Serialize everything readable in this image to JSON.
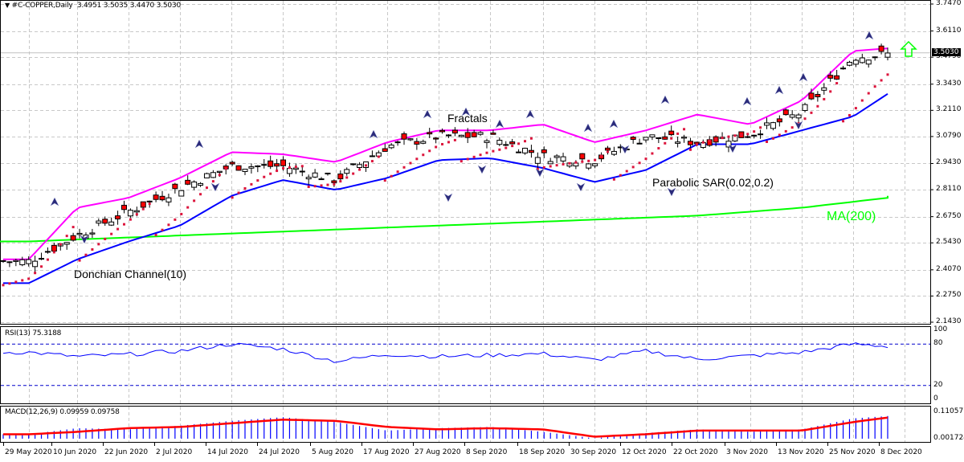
{
  "header": {
    "symbol_line": "#C-COPPER,Daily",
    "ohlc": "3.4951 3.5035 3.4470 3.5030"
  },
  "annotations": {
    "fractals": "Fractals",
    "donchian": "Donchian Channel(10)",
    "psar": "Parabolic SAR(0.02,0.2)",
    "ma": "MA(200)"
  },
  "price_axis": {
    "ticks": [
      "3.7470",
      "3.6110",
      "3.4790",
      "3.3430",
      "3.2110",
      "3.0790",
      "2.9430",
      "2.8110",
      "2.6750",
      "2.5430",
      "2.4070",
      "2.2750",
      "2.1430"
    ],
    "current_price": "3.5030"
  },
  "rsi": {
    "label": "RSI(13) 75.3188",
    "ticks": [
      "100",
      "80",
      "20",
      "0"
    ]
  },
  "macd": {
    "label": "MACD(12,26,9) 0.09959 0.09758",
    "ticks": [
      "0.11057",
      "0.001724"
    ]
  },
  "date_axis": [
    "29 May 2020",
    "10 Jun 2020",
    "22 Jun 2020",
    "2 Jul 2020",
    "14 Jul 2020",
    "24 Jul 2020",
    "5 Aug 2020",
    "17 Aug 2020",
    "27 Aug 2020",
    "8 Sep 2020",
    "18 Sep 2020",
    "30 Sep 2020",
    "12 Oct 2020",
    "22 Oct 2020",
    "3 Nov 2020",
    "13 Nov 2020",
    "25 Nov 2020",
    "8 Dec 2020"
  ],
  "colors": {
    "donchian_upper": "#ff00ff",
    "donchian_lower": "#0000ff",
    "ma": "#00ff00",
    "psar": "#dc143c",
    "bear_candle": "#ff0000",
    "rsi_line": "#0000ff",
    "macd_hist": "#0000ff",
    "macd_signal": "#ff0000",
    "signal_arrow": "#00ff00"
  },
  "chart_data": [
    {
      "type": "candlestick",
      "title": "#C-COPPER,Daily",
      "ylim": [
        2.143,
        3.747
      ],
      "x": [
        "29 May 2020",
        "10 Jun 2020",
        "22 Jun 2020",
        "2 Jul 2020",
        "14 Jul 2020",
        "24 Jul 2020",
        "5 Aug 2020",
        "17 Aug 2020",
        "27 Aug 2020",
        "8 Sep 2020",
        "18 Sep 2020",
        "30 Sep 2020",
        "12 Oct 2020",
        "22 Oct 2020",
        "3 Nov 2020",
        "13 Nov 2020",
        "25 Nov 2020",
        "8 Dec 2020"
      ],
      "close": [
        2.45,
        2.58,
        2.7,
        2.82,
        2.93,
        2.93,
        2.86,
        3.03,
        3.08,
        3.08,
        2.98,
        2.96,
        3.08,
        3.05,
        3.09,
        3.2,
        3.48,
        3.5
      ],
      "series": [
        {
          "name": "Donchian Channel(10) upper",
          "values": [
            2.46,
            2.72,
            2.77,
            2.87,
            3.0,
            2.99,
            2.95,
            3.05,
            3.11,
            3.11,
            3.14,
            3.05,
            3.11,
            3.19,
            3.14,
            3.26,
            3.51,
            3.53
          ]
        },
        {
          "name": "Donchian Channel(10) lower",
          "values": [
            2.34,
            2.46,
            2.55,
            2.63,
            2.78,
            2.86,
            2.81,
            2.87,
            2.96,
            2.97,
            2.92,
            2.85,
            2.91,
            3.04,
            3.04,
            3.11,
            3.18,
            3.35
          ]
        },
        {
          "name": "MA(200)",
          "values": [
            2.55,
            2.56,
            2.57,
            2.58,
            2.59,
            2.6,
            2.61,
            2.62,
            2.63,
            2.64,
            2.65,
            2.66,
            2.67,
            2.68,
            2.7,
            2.72,
            2.75,
            2.78
          ]
        }
      ],
      "last": {
        "open": 3.4951,
        "high": 3.5035,
        "low": 3.447,
        "close": 3.503
      }
    },
    {
      "type": "line",
      "title": "RSI(13) 75.3188",
      "ylim": [
        0,
        100
      ],
      "levels": [
        20,
        80
      ],
      "x": [
        "29 May 2020",
        "10 Jun 2020",
        "22 Jun 2020",
        "2 Jul 2020",
        "14 Jul 2020",
        "24 Jul 2020",
        "5 Aug 2020",
        "17 Aug 2020",
        "27 Aug 2020",
        "8 Sep 2020",
        "18 Sep 2020",
        "30 Sep 2020",
        "12 Oct 2020",
        "22 Oct 2020",
        "3 Nov 2020",
        "13 Nov 2020",
        "25 Nov 2020",
        "8 Dec 2020"
      ],
      "values": [
        68,
        62,
        65,
        70,
        80,
        73,
        55,
        65,
        62,
        64,
        66,
        57,
        70,
        58,
        63,
        68,
        80,
        75.3
      ]
    },
    {
      "type": "bar",
      "title": "MACD(12,26,9) 0.09959 0.09758",
      "ylim": [
        0.001724,
        0.11057
      ],
      "x": [
        "29 May 2020",
        "10 Jun 2020",
        "22 Jun 2020",
        "2 Jul 2020",
        "14 Jul 2020",
        "24 Jul 2020",
        "5 Aug 2020",
        "17 Aug 2020",
        "27 Aug 2020",
        "8 Sep 2020",
        "18 Sep 2020",
        "30 Sep 2020",
        "12 Oct 2020",
        "22 Oct 2020",
        "3 Nov 2020",
        "13 Nov 2020",
        "25 Nov 2020",
        "8 Dec 2020"
      ],
      "series": [
        {
          "name": "MACD",
          "values": [
            0.02,
            0.045,
            0.04,
            0.055,
            0.075,
            0.09,
            0.07,
            0.035,
            0.045,
            0.05,
            0.03,
            0.003,
            0.025,
            0.04,
            0.03,
            0.04,
            0.085,
            0.0996
          ]
        },
        {
          "name": "Signal",
          "values": [
            0.02,
            0.03,
            0.045,
            0.05,
            0.065,
            0.08,
            0.075,
            0.05,
            0.04,
            0.045,
            0.04,
            0.01,
            0.02,
            0.035,
            0.035,
            0.035,
            0.07,
            0.0976
          ]
        }
      ]
    }
  ]
}
